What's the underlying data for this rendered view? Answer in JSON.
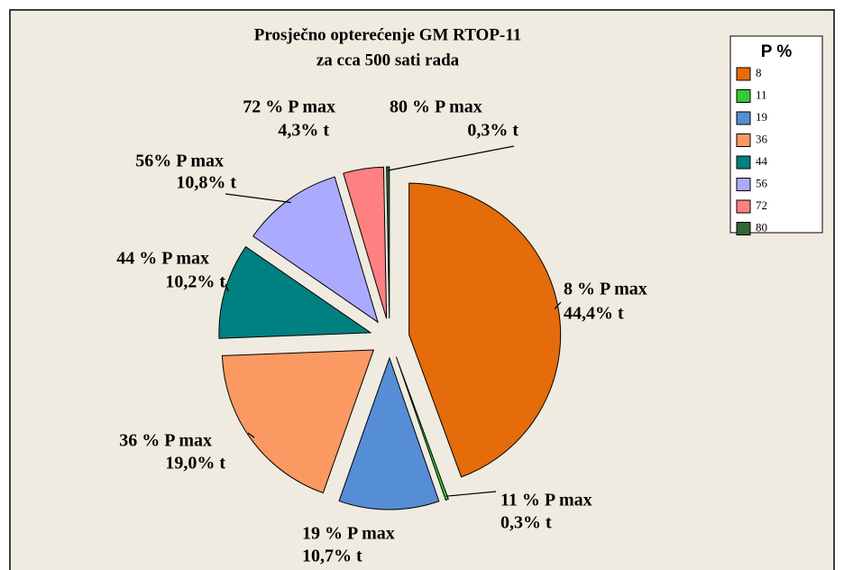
{
  "chart_data": {
    "type": "pie",
    "title": "Prosječno opterećenje GM RTOP-11",
    "subtitle": "za cca 500 sati rada",
    "legend_title": "P %",
    "categories": [
      "8",
      "11",
      "19",
      "36",
      "44",
      "56",
      "72",
      "80"
    ],
    "values": [
      44.4,
      0.3,
      10.7,
      19.0,
      10.2,
      10.8,
      4.3,
      0.3
    ],
    "value_labels": [
      "44,4% t",
      "0,3% t",
      "10,7% t",
      "19,0% t",
      "10,2% t",
      "10,8% t",
      "4,3% t",
      "0,3% t"
    ],
    "slice_labels": [
      "8 %  P max",
      "11 % P max",
      "19 % P max",
      "36 % P max",
      "44 % P max",
      "56% P max",
      "72 %  P max",
      "80 % P max"
    ],
    "colors": [
      "#e46c0a",
      "#33cc33",
      "#558ed5",
      "#fa9a62",
      "#008080",
      "#aaaaff",
      "#ff8080",
      "#336633"
    ],
    "legend": "top-right"
  }
}
